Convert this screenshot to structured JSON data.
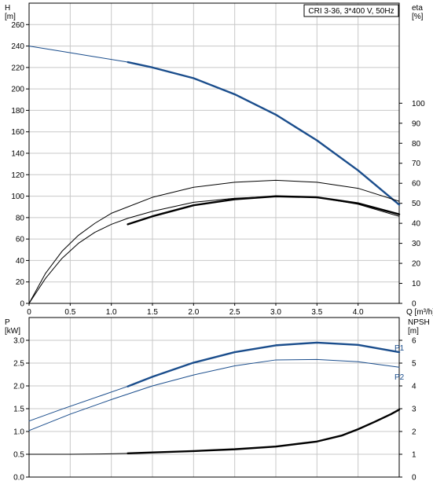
{
  "chart_data": [
    {
      "type": "line",
      "title": "CRI 3-36, 3*400 V, 50Hz",
      "xlabel": "Q [m³/h]",
      "ylabel_left": "H\n[m]",
      "ylabel_right": "eta\n[%]",
      "x_ticks": [
        0,
        0.5,
        1.0,
        1.5,
        2.0,
        2.5,
        3.0,
        3.5,
        4.0
      ],
      "x_tick_labels": [
        "0",
        "0.5",
        "1.0",
        "1.5",
        "2.0",
        "2.5",
        "3.0",
        "3.5",
        "4.0"
      ],
      "xlim": [
        0,
        4.5
      ],
      "ylim_left": [
        0,
        280
      ],
      "y_ticks_left": [
        "0",
        "20",
        "40",
        "60",
        "80",
        "100",
        "120",
        "140",
        "160",
        "180",
        "200",
        "220",
        "240",
        "260"
      ],
      "ylim_right": [
        0,
        150
      ],
      "y_ticks_right": [
        "0",
        "10",
        "20",
        "30",
        "40",
        "50",
        "60",
        "70",
        "80",
        "90",
        "100"
      ],
      "grid": true,
      "series": [
        {
          "axis": "left",
          "style": "thin",
          "color": "#1a4d8c",
          "x": [
            0,
            0.4,
            0.8,
            1.2
          ],
          "y": [
            240,
            235,
            230,
            225
          ]
        },
        {
          "axis": "left",
          "style": "thick",
          "color": "#1a4d8c",
          "x": [
            1.2,
            1.5,
            2.0,
            2.5,
            3.0,
            3.5,
            4.0,
            4.5
          ],
          "y": [
            225,
            220,
            210,
            195,
            176,
            152,
            124,
            92
          ]
        },
        {
          "axis": "right",
          "style": "thin",
          "color": "#000000",
          "x": [
            0,
            0.2,
            0.4,
            0.6,
            0.8,
            1.0,
            1.2,
            1.5,
            2.0,
            2.5,
            3.0,
            3.5,
            4.0,
            4.5
          ],
          "y": [
            0,
            12.5,
            22.5,
            30,
            35.5,
            39.5,
            42.5,
            46,
            50.5,
            52.5,
            53.5,
            53,
            49.5,
            43.5
          ]
        },
        {
          "axis": "right",
          "style": "thin",
          "color": "#000000",
          "x": [
            0,
            0.2,
            0.4,
            0.6,
            0.8,
            1.0,
            1.5,
            2.0,
            2.5,
            3.0,
            3.5,
            4.0,
            4.5
          ],
          "y": [
            0,
            15,
            26,
            34,
            40,
            45,
            53,
            58,
            60.5,
            61.5,
            60.5,
            57.5,
            51
          ]
        },
        {
          "axis": "right",
          "style": "thick",
          "color": "#000000",
          "x": [
            1.2,
            1.5,
            2.0,
            2.5,
            3.0,
            3.5,
            4.0,
            4.5
          ],
          "y": [
            39.5,
            43.5,
            49,
            52,
            53.5,
            53,
            50,
            44.5
          ]
        }
      ]
    },
    {
      "type": "line",
      "xlabel": "",
      "ylabel_left": "P\n[kW]",
      "ylabel_right": "NPSH\n[m]",
      "xlim": [
        0,
        4.5
      ],
      "ylim_left": [
        0,
        3.5
      ],
      "y_ticks_left": [
        "0.0",
        "0.5",
        "1.0",
        "1.5",
        "2.0",
        "2.5",
        "3.0"
      ],
      "ylim_right": [
        0,
        7
      ],
      "y_ticks_right": [
        "0",
        "1",
        "2",
        "3",
        "4",
        "5",
        "6"
      ],
      "grid": true,
      "series": [
        {
          "name": "P1",
          "axis": "left",
          "style": "thin",
          "color": "#1a4d8c",
          "x": [
            0,
            0.4,
            0.8,
            1.2
          ],
          "y": [
            1.23,
            1.49,
            1.74,
            1.99
          ]
        },
        {
          "name": "P1",
          "axis": "left",
          "style": "thick",
          "color": "#1a4d8c",
          "x": [
            1.2,
            1.5,
            2.0,
            2.5,
            3.0,
            3.5,
            4.0,
            4.5
          ],
          "y": [
            1.99,
            2.2,
            2.51,
            2.74,
            2.89,
            2.95,
            2.9,
            2.74
          ]
        },
        {
          "name": "P2",
          "axis": "left",
          "style": "thin",
          "color": "#1a4d8c",
          "x": [
            0,
            0.5,
            1.0,
            1.5,
            2.0,
            2.5,
            3.0,
            3.5,
            4.0,
            4.5
          ],
          "y": [
            1.02,
            1.38,
            1.7,
            2.0,
            2.24,
            2.44,
            2.57,
            2.58,
            2.53,
            2.41
          ]
        },
        {
          "axis": "right",
          "style": "thin",
          "color": "#000000",
          "x": [
            0,
            0.5,
            1.0,
            1.2
          ],
          "y": [
            1.0,
            1.0,
            1.02,
            1.04
          ]
        },
        {
          "axis": "right",
          "style": "thick",
          "color": "#000000",
          "x": [
            1.2,
            1.5,
            2.0,
            2.5,
            3.0,
            3.5,
            3.8,
            4.0,
            4.2,
            4.4,
            4.5
          ],
          "y": [
            1.04,
            1.08,
            1.14,
            1.22,
            1.34,
            1.56,
            1.82,
            2.1,
            2.42,
            2.76,
            2.96
          ]
        }
      ]
    }
  ]
}
